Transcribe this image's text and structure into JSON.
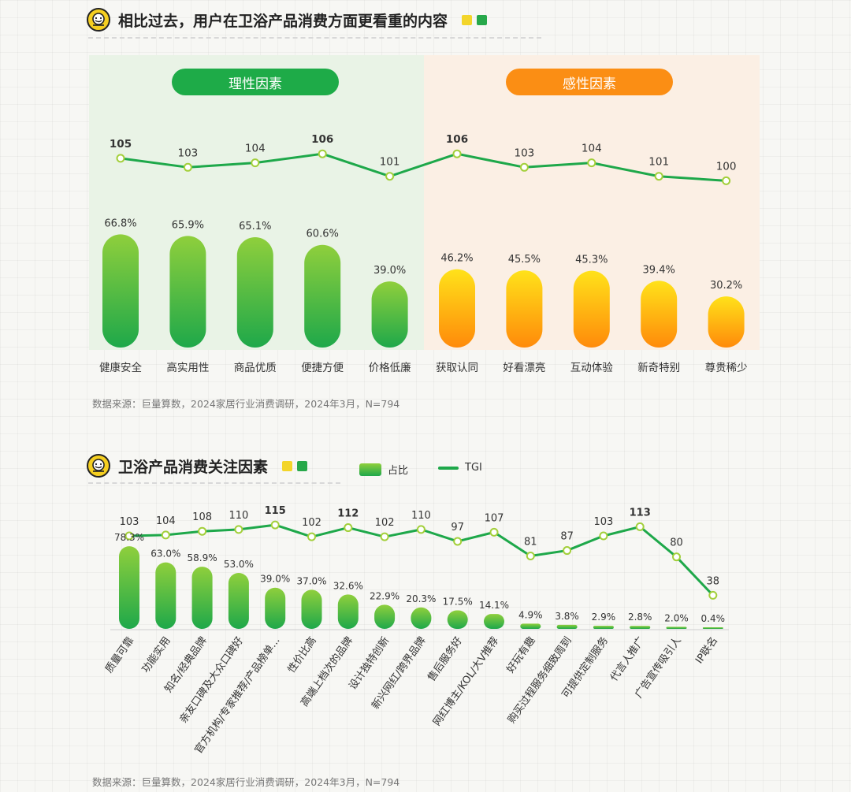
{
  "chart_data": [
    {
      "type": "bar",
      "title": "相比过去，用户在卫浴产品消费方面更看重的内容",
      "group_labels": [
        "理性因素",
        "感性因素"
      ],
      "categories": [
        "健康安全",
        "高实用性",
        "商品优质",
        "便捷方便",
        "价格低廉",
        "获取认同",
        "好看漂亮",
        "互动体验",
        "新奇特别",
        "尊贵稀少"
      ],
      "series": [
        {
          "values": [
            66.8,
            65.9,
            65.1,
            60.6,
            39.0,
            46.2,
            45.5,
            45.3,
            39.4,
            30.2
          ]
        },
        {
          "type": "line",
          "values": [
            105,
            103,
            104,
            106,
            101,
            106,
            103,
            104,
            101,
            100
          ]
        }
      ],
      "value_labels": [
        "66.8%",
        "65.9%",
        "65.1%",
        "60.6%",
        "39.0%",
        "46.2%",
        "45.5%",
        "45.3%",
        "39.4%",
        "30.2%"
      ],
      "line_labels": [
        "105",
        "103",
        "104",
        "106",
        "101",
        "106",
        "103",
        "104",
        "101",
        "100"
      ],
      "source": "数据来源：巨量算数，2024家居行业消费调研，2024年3月，N=794"
    },
    {
      "type": "bar",
      "title": "卫浴产品消费关注因素",
      "legend": [
        "占比",
        "TGI"
      ],
      "categories": [
        "质量可靠",
        "功能实用",
        "知名/经典品牌",
        "亲友口碑及大众口碑好",
        "官方机构/专家推荐/产品榜单...",
        "性价比高",
        "高端上档次的品牌",
        "设计独特创新",
        "新兴网红/跨界品牌",
        "售后服务好",
        "网红博主/KOL/大V推荐",
        "好玩有趣",
        "购买过程服务细致周到",
        "可提供定制服务",
        "代言人推广",
        "广告宣传吸引人",
        "IP联名"
      ],
      "series": [
        {
          "name": "占比",
          "values": [
            78.3,
            63.0,
            58.9,
            53.0,
            39.0,
            37.0,
            32.6,
            22.9,
            20.3,
            17.5,
            14.1,
            4.9,
            3.8,
            2.9,
            2.8,
            2.0,
            0.4
          ]
        },
        {
          "name": "TGI",
          "type": "line",
          "values": [
            103,
            104,
            108,
            110,
            115,
            102,
            112,
            102,
            110,
            97,
            107,
            81,
            87,
            103,
            113,
            80,
            38
          ]
        }
      ],
      "value_labels": [
        "78.3%",
        "63.0%",
        "58.9%",
        "53.0%",
        "39.0%",
        "37.0%",
        "32.6%",
        "22.9%",
        "20.3%",
        "17.5%",
        "14.1%",
        "4.9%",
        "3.8%",
        "2.9%",
        "2.8%",
        "2.0%",
        "0.4%"
      ],
      "line_labels": [
        "103",
        "104",
        "108",
        "110",
        "115",
        "102",
        "112",
        "102",
        "110",
        "97",
        "107",
        "81",
        "87",
        "103",
        "113",
        "80",
        "38"
      ],
      "source": "数据来源：巨量算数，2024家居行业消费调研，2024年3月，N=794"
    }
  ],
  "colors": {
    "green_top": "#8fcf3c",
    "green_bottom": "#1ea84a",
    "yellow_top": "#ffe21a",
    "yellow_bottom": "#ff8a0a",
    "line": "#1ea84a"
  },
  "icon": "smile-bowl-icon"
}
